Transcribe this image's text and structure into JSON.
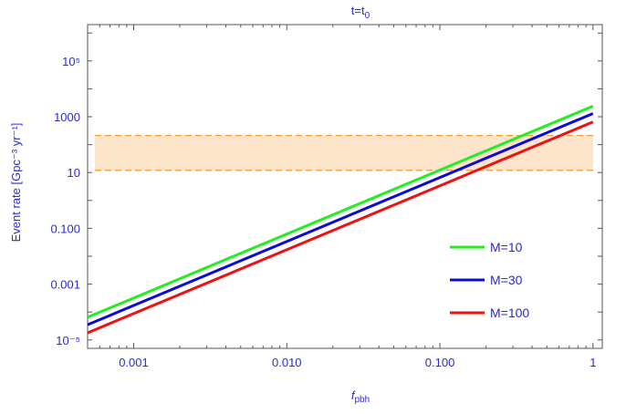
{
  "chart_data": {
    "type": "line",
    "title": "t=t0",
    "title_parts": {
      "base": "t=t",
      "sub": "0"
    },
    "xlabel": {
      "base": "f",
      "sub": "pbh"
    },
    "ylabel": "Event  rate [Gpc⁻³ yr⁻¹]",
    "x_scale": "log",
    "y_scale": "log",
    "xlim": [
      0.0005,
      1.15
    ],
    "ylim": [
      5e-06,
      2000000
    ],
    "x_ticks": [
      {
        "value": 0.001,
        "label": "0.001"
      },
      {
        "value": 0.01,
        "label": "0.010"
      },
      {
        "value": 0.1,
        "label": "0.100"
      },
      {
        "value": 1,
        "label": "1"
      }
    ],
    "y_ticks": [
      {
        "value": 1e-05,
        "label": "10⁻⁵"
      },
      {
        "value": 0.001,
        "label": "0.001"
      },
      {
        "value": 0.1,
        "label": "0.100"
      },
      {
        "value": 10,
        "label": "10"
      },
      {
        "value": 1000,
        "label": "1000"
      },
      {
        "value": 100000,
        "label": "10⁵"
      }
    ],
    "band": {
      "y_min": 12,
      "y_max": 213,
      "fill": "#fde5cc",
      "edge": "#f39a2a"
    },
    "series": [
      {
        "name": "M=10",
        "color": "#22ee22",
        "x": [
          0.0005,
          1.0
        ],
        "y": [
          6.5e-05,
          2400
        ]
      },
      {
        "name": "M=30",
        "color": "#0b0bd6",
        "x": [
          0.0005,
          1.0
        ],
        "y": [
          3.5e-05,
          1300
        ]
      },
      {
        "name": "M=100",
        "color": "#ee1111",
        "x": [
          0.0005,
          1.0
        ],
        "y": [
          1.8e-05,
          650
        ]
      }
    ],
    "legend_position": "bottom-right",
    "grid": false
  }
}
